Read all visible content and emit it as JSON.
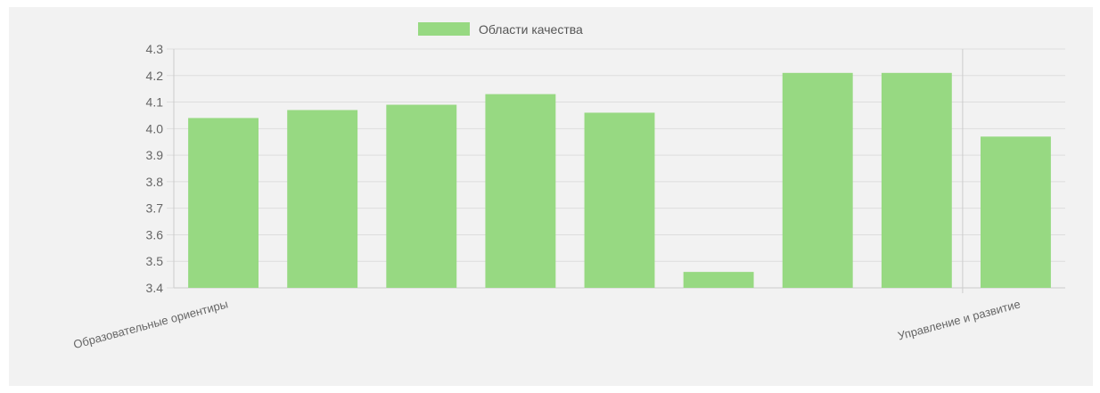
{
  "chart_data": {
    "type": "bar",
    "categories": [
      "Образовательные ориентиры",
      "",
      "",
      "",
      "",
      "",
      "",
      "",
      "Управление и развитие"
    ],
    "series": [
      {
        "name": "Области качества",
        "values": [
          4.04,
          4.07,
          4.09,
          4.13,
          4.06,
          3.46,
          4.21,
          4.21,
          3.97
        ]
      }
    ],
    "ylim": [
      3.4,
      4.3
    ],
    "yticks": [
      "4.3",
      "4.2",
      "4.1",
      "4.0",
      "3.9",
      "3.8",
      "3.7",
      "3.6",
      "3.5",
      "3.4"
    ],
    "grid": true,
    "legend_position": "top",
    "colors": {
      "bar": "#97d982",
      "grid": "#dddddd",
      "background": "#f2f2f2"
    }
  }
}
